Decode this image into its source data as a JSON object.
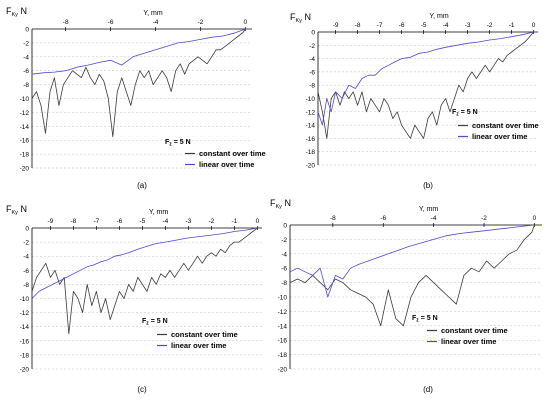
{
  "colors": {
    "background": "#ffffff",
    "axis": "#000000",
    "grid": "#bfbfbf",
    "constant": "#3a3a3a",
    "linear": "#4b4bc8"
  },
  "chart_data": [
    {
      "type": "line",
      "panel_label": "(a)",
      "ylabel": "F_Ky, N",
      "ylabel_main": "F",
      "ylabel_sub": "Ky",
      "ylabel_unit": "N",
      "xlabel": "Y, mm",
      "xlim": [
        -9.5,
        0.3
      ],
      "ylim": [
        -20,
        0
      ],
      "x_ticks": [
        -8,
        -6,
        -4,
        -2,
        0
      ],
      "y_ticks": [
        0,
        -2,
        -4,
        -6,
        -8,
        -10,
        -12,
        -14,
        -16,
        -18,
        -20
      ],
      "grid": true,
      "legend_position": "bottom-right",
      "annotation": "F_z = 5 N",
      "annotation_main": "F",
      "annotation_sub": "z",
      "annotation_rest": " = 5 N",
      "series": [
        {
          "name": "constant over time",
          "x": [
            -9.5,
            -9.3,
            -9.1,
            -8.9,
            -8.7,
            -8.5,
            -8.3,
            -8.1,
            -7.9,
            -7.7,
            -7.5,
            -7.3,
            -7.1,
            -6.9,
            -6.7,
            -6.5,
            -6.3,
            -6.1,
            -5.9,
            -5.7,
            -5.5,
            -5.3,
            -5.1,
            -4.9,
            -4.7,
            -4.5,
            -4.3,
            -4.1,
            -3.9,
            -3.7,
            -3.5,
            -3.3,
            -3.1,
            -2.9,
            -2.7,
            -2.5,
            -2.3,
            -2.1,
            -1.9,
            -1.7,
            -1.5,
            -1.3,
            -1.1,
            -0.9,
            -0.7,
            -0.5,
            -0.3,
            -0.1,
            0.0
          ],
          "y": [
            -10,
            -9,
            -11,
            -15,
            -9,
            -7,
            -11,
            -8,
            -7,
            -6,
            -6.5,
            -7,
            -5.5,
            -7,
            -8,
            -6.5,
            -7.5,
            -10,
            -15.5,
            -9,
            -7,
            -9,
            -11,
            -8,
            -6,
            -7,
            -6,
            -8,
            -7,
            -6,
            -7,
            -9,
            -6,
            -5,
            -6.5,
            -5,
            -4.5,
            -4,
            -4.5,
            -5,
            -4,
            -3,
            -3,
            -2.5,
            -2,
            -1.5,
            -1,
            -0.5,
            0
          ]
        },
        {
          "name": "linear over time",
          "x": [
            -9.5,
            -9.0,
            -8.5,
            -8.0,
            -7.5,
            -7.0,
            -6.5,
            -6.0,
            -5.5,
            -5.0,
            -4.5,
            -4.0,
            -3.5,
            -3.0,
            -2.5,
            -2.0,
            -1.5,
            -1.0,
            -0.5,
            0.0
          ],
          "y": [
            -6.5,
            -6.3,
            -6.2,
            -6.0,
            -5.5,
            -5.2,
            -4.8,
            -4.5,
            -5.2,
            -4.0,
            -3.5,
            -3.0,
            -2.5,
            -2.0,
            -1.8,
            -1.5,
            -1.2,
            -1.0,
            -0.6,
            0
          ]
        }
      ]
    },
    {
      "type": "line",
      "panel_label": "(b)",
      "ylabel": "F_Ky, N",
      "ylabel_main": "F",
      "ylabel_sub": "Ky",
      "ylabel_unit": "N",
      "xlabel": "Y, mm",
      "xlim": [
        -9.8,
        0.2
      ],
      "ylim": [
        -20,
        0
      ],
      "x_ticks": [
        -9,
        -8,
        -7,
        -6,
        -5,
        -4,
        -3,
        -2,
        -1,
        0
      ],
      "y_ticks": [
        0,
        -2,
        -4,
        -6,
        -8,
        -10,
        -12,
        -14,
        -16,
        -18,
        -20
      ],
      "grid": true,
      "legend_position": "bottom-right",
      "annotation": "F_z = 5 N",
      "annotation_main": "F",
      "annotation_sub": "z",
      "annotation_rest": " = 5 N",
      "series": [
        {
          "name": "constant over time",
          "x": [
            -9.8,
            -9.6,
            -9.4,
            -9.2,
            -9.0,
            -8.8,
            -8.6,
            -8.4,
            -8.2,
            -8.0,
            -7.8,
            -7.6,
            -7.4,
            -7.2,
            -7.0,
            -6.8,
            -6.6,
            -6.4,
            -6.2,
            -6.0,
            -5.8,
            -5.6,
            -5.4,
            -5.2,
            -5.0,
            -4.8,
            -4.6,
            -4.4,
            -4.2,
            -4.0,
            -3.8,
            -3.6,
            -3.4,
            -3.2,
            -3.0,
            -2.8,
            -2.6,
            -2.4,
            -2.2,
            -2.0,
            -1.8,
            -1.6,
            -1.4,
            -1.2,
            -1.0,
            -0.8,
            -0.6,
            -0.4,
            -0.2,
            0.0
          ],
          "y": [
            -9,
            -12,
            -16,
            -10,
            -9,
            -11,
            -9,
            -10,
            -9,
            -11,
            -9,
            -12,
            -10,
            -11,
            -12,
            -10,
            -11,
            -13,
            -12,
            -14,
            -15,
            -16,
            -14,
            -15,
            -16,
            -13,
            -12,
            -14,
            -11,
            -10,
            -12,
            -10,
            -8,
            -9,
            -7,
            -6,
            -7,
            -6,
            -5,
            -6,
            -5,
            -4,
            -4.5,
            -3.5,
            -3,
            -2.5,
            -2,
            -1.5,
            -0.8,
            0
          ]
        },
        {
          "name": "linear over time",
          "x": [
            -9.8,
            -9.6,
            -9.4,
            -9.2,
            -9.0,
            -8.7,
            -8.4,
            -8.1,
            -7.8,
            -7.5,
            -7.2,
            -6.9,
            -6.6,
            -6.3,
            -6.0,
            -5.6,
            -5.2,
            -4.8,
            -4.4,
            -4.0,
            -3.5,
            -3.0,
            -2.5,
            -2.0,
            -1.5,
            -1.0,
            -0.5,
            0.0
          ],
          "y": [
            -12,
            -14,
            -10,
            -12,
            -9,
            -10,
            -8,
            -8.5,
            -7,
            -6.5,
            -6.5,
            -5.5,
            -5,
            -4.5,
            -4,
            -3.8,
            -3.2,
            -3,
            -2.6,
            -2.3,
            -2,
            -1.7,
            -1.5,
            -1.2,
            -1,
            -0.7,
            -0.4,
            0
          ]
        }
      ]
    },
    {
      "type": "line",
      "panel_label": "(c)",
      "ylabel": "F_Ky, N",
      "ylabel_main": "F",
      "ylabel_sub": "Ky",
      "ylabel_unit": "N",
      "xlabel": "Y, mm",
      "xlim": [
        -9.8,
        0.2
      ],
      "ylim": [
        -20,
        0
      ],
      "x_ticks": [
        -9,
        -8,
        -7,
        -6,
        -5,
        -4,
        -3,
        -2,
        -1,
        0
      ],
      "y_ticks": [
        0,
        -2,
        -4,
        -6,
        -8,
        -10,
        -12,
        -14,
        -16,
        -18,
        -20
      ],
      "grid": true,
      "legend_position": "bottom-right",
      "annotation": "F_z = 5 N",
      "annotation_main": "F",
      "annotation_sub": "z",
      "annotation_rest": " = 5 N",
      "series": [
        {
          "name": "constant over time",
          "x": [
            -9.8,
            -9.6,
            -9.4,
            -9.2,
            -9.0,
            -8.8,
            -8.6,
            -8.4,
            -8.2,
            -8.0,
            -7.8,
            -7.6,
            -7.4,
            -7.2,
            -7.0,
            -6.8,
            -6.6,
            -6.4,
            -6.2,
            -6.0,
            -5.8,
            -5.6,
            -5.4,
            -5.2,
            -5.0,
            -4.8,
            -4.6,
            -4.4,
            -4.2,
            -4.0,
            -3.8,
            -3.6,
            -3.4,
            -3.2,
            -3.0,
            -2.8,
            -2.6,
            -2.4,
            -2.2,
            -2.0,
            -1.8,
            -1.6,
            -1.4,
            -1.2,
            -1.0,
            -0.8,
            -0.6,
            -0.4,
            -0.2,
            0.0
          ],
          "y": [
            -9,
            -7,
            -6,
            -5,
            -7,
            -6,
            -8,
            -7,
            -15,
            -9,
            -10,
            -12,
            -8,
            -11,
            -9,
            -12,
            -10,
            -13,
            -11,
            -9,
            -10,
            -8,
            -9,
            -7,
            -8,
            -9,
            -7,
            -8,
            -6.5,
            -7,
            -6,
            -7,
            -6,
            -5,
            -6,
            -5,
            -4,
            -5,
            -4,
            -3.5,
            -4,
            -3,
            -3.5,
            -2.5,
            -2,
            -2,
            -1.5,
            -1,
            -0.5,
            0
          ]
        },
        {
          "name": "linear over time",
          "x": [
            -9.8,
            -9.5,
            -9.2,
            -8.9,
            -8.6,
            -8.3,
            -8.0,
            -7.7,
            -7.4,
            -7.1,
            -6.8,
            -6.5,
            -6.2,
            -5.9,
            -5.6,
            -5.2,
            -4.8,
            -4.4,
            -4.0,
            -3.5,
            -3.0,
            -2.5,
            -2.0,
            -1.5,
            -1.0,
            -0.5,
            0.0
          ],
          "y": [
            -10,
            -9,
            -8.5,
            -8,
            -7.5,
            -7,
            -6.5,
            -6,
            -5.5,
            -5.2,
            -4.8,
            -4.5,
            -4,
            -3.8,
            -3.5,
            -3,
            -2.6,
            -2.2,
            -2,
            -1.7,
            -1.4,
            -1.2,
            -1,
            -0.8,
            -0.5,
            -0.3,
            0
          ]
        }
      ]
    },
    {
      "type": "line",
      "panel_label": "(d)",
      "ylabel": "F_Ky, N",
      "ylabel_main": "F",
      "ylabel_sub": "Ky",
      "ylabel_unit": "N",
      "xlabel": "Y, mm",
      "xlim": [
        -9.7,
        0.3
      ],
      "ylim": [
        -20,
        0
      ],
      "x_ticks": [
        -8,
        -6,
        -4,
        -2,
        0
      ],
      "y_ticks": [
        0,
        -2,
        -4,
        -6,
        -8,
        -10,
        -12,
        -14,
        -16,
        -18,
        -20
      ],
      "grid": true,
      "legend_position": "bottom-right",
      "annotation": "F_z = 5 N",
      "annotation_main": "F",
      "annotation_sub": "z",
      "annotation_rest": " = 5 N",
      "series": [
        {
          "name": "constant over time",
          "x": [
            -9.7,
            -9.4,
            -9.1,
            -8.8,
            -8.5,
            -8.2,
            -7.9,
            -7.6,
            -7.3,
            -7.0,
            -6.7,
            -6.4,
            -6.1,
            -5.8,
            -5.5,
            -5.2,
            -4.9,
            -4.6,
            -4.3,
            -4.0,
            -3.7,
            -3.4,
            -3.1,
            -2.8,
            -2.5,
            -2.2,
            -1.9,
            -1.6,
            -1.3,
            -1.0,
            -0.7,
            -0.4,
            -0.1,
            0.0
          ],
          "y": [
            -8,
            -7.5,
            -8,
            -7,
            -8,
            -9,
            -7.5,
            -8,
            -9,
            -9.5,
            -10,
            -11,
            -14,
            -9,
            -13,
            -14,
            -10,
            -8,
            -7,
            -8,
            -9,
            -10,
            -11,
            -7,
            -6,
            -6.5,
            -5,
            -6,
            -5,
            -4,
            -3.5,
            -2,
            -1,
            0
          ]
        },
        {
          "name": "linear over time",
          "x": [
            -9.7,
            -9.4,
            -9.1,
            -8.8,
            -8.5,
            -8.2,
            -7.9,
            -7.6,
            -7.3,
            -7.0,
            -6.6,
            -6.2,
            -5.8,
            -5.4,
            -5.0,
            -4.5,
            -4.0,
            -3.5,
            -3.0,
            -2.5,
            -2.0,
            -1.5,
            -1.0,
            -0.5,
            0.0
          ],
          "y": [
            -6.5,
            -6,
            -6.5,
            -7,
            -6,
            -10,
            -7,
            -7.5,
            -6,
            -5.5,
            -5,
            -4.5,
            -4,
            -3.5,
            -3,
            -2.5,
            -2,
            -1.5,
            -1.2,
            -1,
            -0.8,
            -0.6,
            -0.4,
            -0.2,
            0
          ]
        }
      ]
    }
  ]
}
